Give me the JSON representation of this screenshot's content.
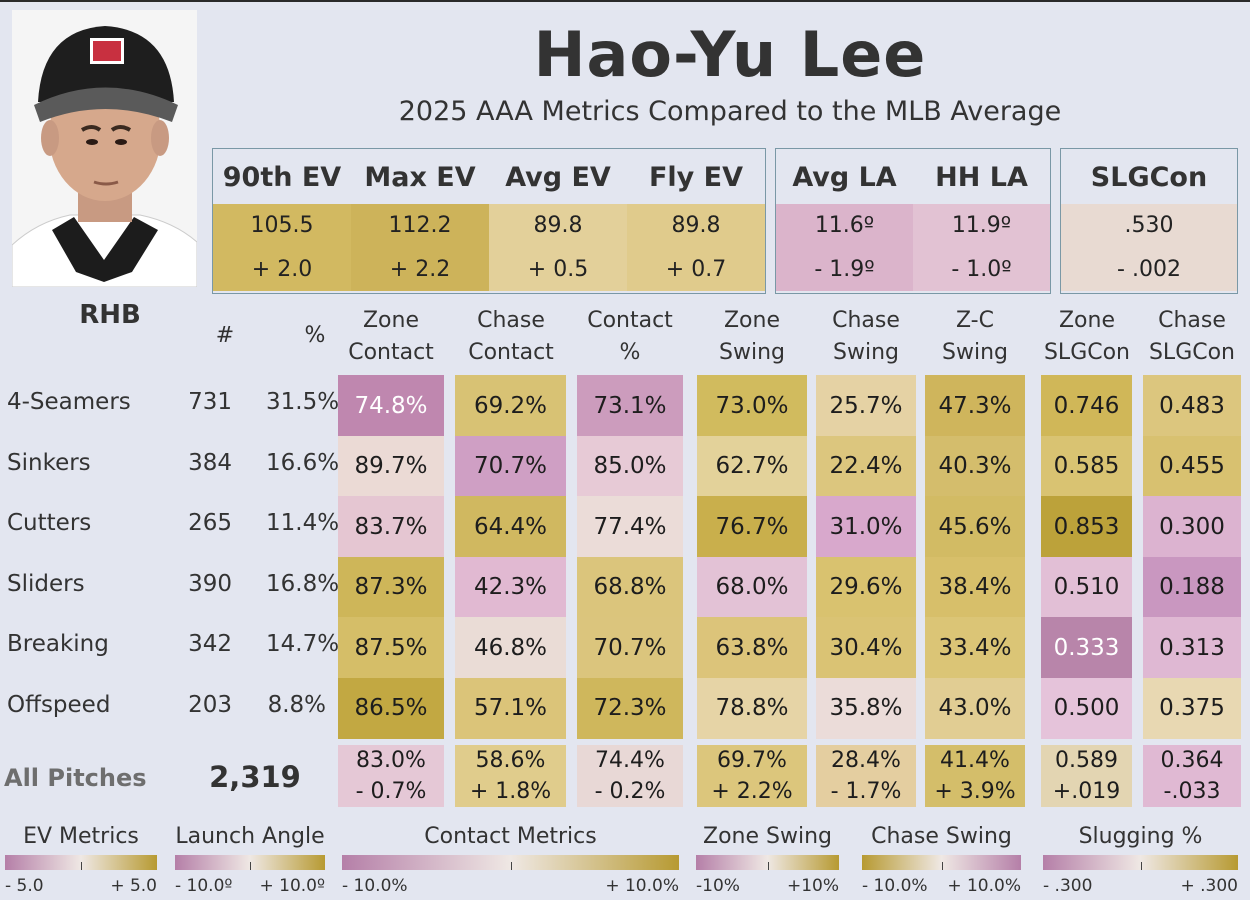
{
  "player": {
    "name": "Hao-Yu  Lee",
    "subtitle": "2025 AAA Metrics Compared to the MLB Average",
    "hand": "RHB"
  },
  "summary": {
    "ev_box": [
      {
        "label": "90th EV",
        "value": "105.5",
        "diff": "+ 2.0",
        "color": "#d2b961"
      },
      {
        "label": "Max EV",
        "value": "112.2",
        "diff": "+ 2.2",
        "color": "#cdb35a"
      },
      {
        "label": "Avg EV",
        "value": "89.8",
        "diff": "+ 0.5",
        "color": "#e3d09a"
      },
      {
        "label": "Fly EV",
        "value": "89.8",
        "diff": "+ 0.7",
        "color": "#e0cb8c"
      }
    ],
    "la_box": [
      {
        "label": "Avg LA",
        "value": "11.6º",
        "diff": "- 1.9º",
        "color": "#dbb4cb"
      },
      {
        "label": "HH LA",
        "value": "11.9º",
        "diff": "- 1.0º",
        "color": "#e2c2d3"
      }
    ],
    "slg_box": [
      {
        "label": "SLGCon",
        "value": ".530",
        "diff": "- .002",
        "color": "#e8dad2"
      }
    ]
  },
  "table": {
    "headers": {
      "count": "#",
      "pct": "%",
      "cols": [
        [
          "Zone",
          "Contact"
        ],
        [
          "Chase",
          "Contact"
        ],
        [
          "Contact",
          "%"
        ],
        [
          "Zone",
          "Swing"
        ],
        [
          "Chase",
          "Swing"
        ],
        [
          "Z-C",
          "Swing"
        ],
        [
          "Zone",
          "SLGCon"
        ],
        [
          "Chase",
          "SLGCon"
        ]
      ]
    },
    "rows": [
      {
        "pitch": "4-Seamers",
        "count": "731",
        "pct": "31.5%",
        "values": [
          "74.8%",
          "69.2%",
          "73.1%",
          "73.0%",
          "25.7%",
          "47.3%",
          "0.746",
          "0.483"
        ],
        "colors": [
          "#bf87af",
          "#d8c274",
          "#cc9cbd",
          "#d1bb5e",
          "#e5d2a4",
          "#cfb55c",
          "#d0b758",
          "#dcc67e"
        ],
        "textcolors": [
          "#ffffff",
          "#1d1d1d",
          "#1d1d1d",
          "#1d1d1d",
          "#1d1d1d",
          "#1d1d1d",
          "#1d1d1d",
          "#1d1d1d"
        ]
      },
      {
        "pitch": "Sinkers",
        "count": "384",
        "pct": "16.6%",
        "values": [
          "89.7%",
          "70.7%",
          "85.0%",
          "62.7%",
          "22.4%",
          "40.3%",
          "0.585",
          "0.455"
        ],
        "colors": [
          "#ebdad5",
          "#cf9fc4",
          "#e7cad6",
          "#e3d29a",
          "#dcc67e",
          "#d4bd6c",
          "#d9c372",
          "#d8c170"
        ],
        "textcolors": [
          "#1d1d1d",
          "#1d1d1d",
          "#1d1d1d",
          "#1d1d1d",
          "#1d1d1d",
          "#1d1d1d",
          "#1d1d1d",
          "#1d1d1d"
        ]
      },
      {
        "pitch": "Cutters",
        "count": "265",
        "pct": "11.4%",
        "values": [
          "83.7%",
          "64.4%",
          "77.4%",
          "76.7%",
          "31.0%",
          "45.6%",
          "0.853",
          "0.300"
        ],
        "colors": [
          "#e5c6d2",
          "#d0b860",
          "#ebdcd8",
          "#c9af4c",
          "#d8a8cc",
          "#d2bb64",
          "#bca23a",
          "#dcb3d0"
        ],
        "textcolors": [
          "#1d1d1d",
          "#1d1d1d",
          "#1d1d1d",
          "#1d1d1d",
          "#1d1d1d",
          "#1d1d1d",
          "#1d1d1d",
          "#1d1d1d"
        ]
      },
      {
        "pitch": "Sliders",
        "count": "390",
        "pct": "16.8%",
        "values": [
          "87.3%",
          "42.3%",
          "68.8%",
          "68.0%",
          "29.6%",
          "38.4%",
          "0.510",
          "0.188"
        ],
        "colors": [
          "#ceb659",
          "#e1b9d2",
          "#dbc57c",
          "#e3c2d6",
          "#d9c26f",
          "#d7bf6a",
          "#e2bfd6",
          "#c997c0"
        ],
        "textcolors": [
          "#1d1d1d",
          "#1d1d1d",
          "#1d1d1d",
          "#1d1d1d",
          "#1d1d1d",
          "#1d1d1d",
          "#1d1d1d",
          "#1d1d1d"
        ]
      },
      {
        "pitch": "Breaking",
        "count": "342",
        "pct": "14.7%",
        "values": [
          "87.5%",
          "46.8%",
          "70.7%",
          "63.8%",
          "30.4%",
          "33.4%",
          "0.333",
          "0.313"
        ],
        "colors": [
          "#d5be68",
          "#eadcd6",
          "#dbc57d",
          "#dcc47a",
          "#dac374",
          "#dbc576",
          "#b885aa",
          "#dfb8d3"
        ],
        "textcolors": [
          "#1d1d1d",
          "#1d1d1d",
          "#1d1d1d",
          "#1d1d1d",
          "#1d1d1d",
          "#1d1d1d",
          "#ffffff",
          "#1d1d1d"
        ]
      },
      {
        "pitch": "Offspeed",
        "count": "203",
        "pct": "8.8%",
        "values": [
          "86.5%",
          "57.1%",
          "72.3%",
          "78.8%",
          "35.8%",
          "43.0%",
          "0.500",
          "0.375"
        ],
        "colors": [
          "#c2a842",
          "#dbc479",
          "#cfb75c",
          "#e6d4a6",
          "#ebdcd9",
          "#e1cd93",
          "#e5c3da",
          "#e8d8b2"
        ],
        "textcolors": [
          "#1d1d1d",
          "#1d1d1d",
          "#1d1d1d",
          "#1d1d1d",
          "#1d1d1d",
          "#1d1d1d",
          "#1d1d1d",
          "#1d1d1d"
        ]
      }
    ],
    "totals": {
      "label": "All Pitches",
      "count": "2,319",
      "values": [
        "83.0%",
        "58.6%",
        "74.4%",
        "69.7%",
        "28.4%",
        "41.4%",
        "0.589",
        "0.364"
      ],
      "diffs": [
        "- 0.7%",
        "+ 1.8%",
        "- 0.2%",
        "+ 2.2%",
        "- 1.7%",
        "+ 3.9%",
        "+.019",
        "-.033"
      ],
      "colors": [
        "#e5c8d6",
        "#e0cc8c",
        "#e8d8d6",
        "#dcc67c",
        "#e4cea0",
        "#d4be6a",
        "#e3d5b2",
        "#e0b9d3"
      ]
    }
  },
  "legends": [
    {
      "title": "EV Metrics",
      "low": "- 5.0",
      "high": "+ 5.0"
    },
    {
      "title": "Launch Angle",
      "low": "- 10.0º",
      "high": "+ 10.0º"
    },
    {
      "title": "Contact Metrics",
      "low": "- 10.0%",
      "high": "+ 10.0%"
    },
    {
      "title": "Zone Swing",
      "low": "-10%",
      "high": "+10%"
    },
    {
      "title": "Chase Swing",
      "low": "- 10.0%",
      "high": "+ 10.0%"
    },
    {
      "title": "Slugging %",
      "low": "- .300",
      "high": "+ .300"
    }
  ],
  "colors": {
    "purple": "#b57fa8",
    "gold": "#b79a32",
    "neutral": "#efe8e4"
  },
  "chart_data": {
    "type": "table",
    "title": "Hao-Yu  Lee",
    "subtitle": "2025 AAA Metrics Compared to the MLB Average",
    "columns": [
      "#",
      "%",
      "Zone Contact",
      "Chase Contact",
      "Contact %",
      "Zone Swing",
      "Chase Swing",
      "Z-C Swing",
      "Zone SLGCon",
      "Chase SLGCon"
    ],
    "rows": [
      {
        "pitch": "4-Seamers",
        "values": [
          731,
          31.5,
          74.8,
          69.2,
          73.1,
          73.0,
          25.7,
          47.3,
          0.746,
          0.483
        ]
      },
      {
        "pitch": "Sinkers",
        "values": [
          384,
          16.6,
          89.7,
          70.7,
          85.0,
          62.7,
          22.4,
          40.3,
          0.585,
          0.455
        ]
      },
      {
        "pitch": "Cutters",
        "values": [
          265,
          11.4,
          83.7,
          64.4,
          77.4,
          76.7,
          31.0,
          45.6,
          0.853,
          0.3
        ]
      },
      {
        "pitch": "Sliders",
        "values": [
          390,
          16.8,
          87.3,
          42.3,
          68.8,
          68.0,
          29.6,
          38.4,
          0.51,
          0.188
        ]
      },
      {
        "pitch": "Breaking",
        "values": [
          342,
          14.7,
          87.5,
          46.8,
          70.7,
          63.8,
          30.4,
          33.4,
          0.333,
          0.313
        ]
      },
      {
        "pitch": "Offspeed",
        "values": [
          203,
          8.8,
          86.5,
          57.1,
          72.3,
          78.8,
          35.8,
          43.0,
          0.5,
          0.375
        ]
      },
      {
        "pitch": "All Pitches",
        "values": [
          2319,
          null,
          83.0,
          58.6,
          74.4,
          69.7,
          28.4,
          41.4,
          0.589,
          0.364
        ]
      }
    ],
    "all_pitches_diff_vs_mlb": [
      -0.7,
      1.8,
      -0.2,
      2.2,
      -1.7,
      3.9,
      0.019,
      -0.033
    ],
    "batted_ball": {
      "90th EV": [
        105.5,
        2.0
      ],
      "Max EV": [
        112.2,
        2.2
      ],
      "Avg EV": [
        89.8,
        0.5
      ],
      "Fly EV": [
        89.8,
        0.7
      ],
      "Avg LA": [
        11.6,
        -1.9
      ],
      "HH LA": [
        11.9,
        -1.0
      ],
      "SLGCon": [
        0.53,
        -0.002
      ]
    }
  }
}
